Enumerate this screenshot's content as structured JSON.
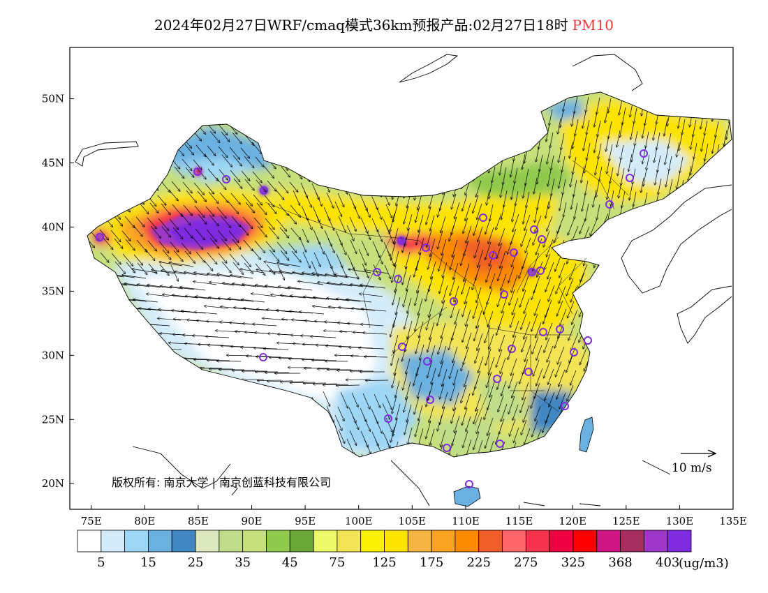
{
  "title": {
    "main": "2024年02月27日WRF/cmaq模式36km预报产品:02月27日18时",
    "pollutant": "PM10"
  },
  "map": {
    "lat_labels": [
      "50N",
      "45N",
      "40N",
      "35N",
      "30N",
      "25N",
      "20N"
    ],
    "lat_values": [
      50,
      45,
      40,
      35,
      30,
      25,
      20
    ],
    "lon_labels": [
      "75E",
      "80E",
      "85E",
      "90E",
      "95E",
      "100E",
      "105E",
      "110E",
      "115E",
      "120E",
      "125E",
      "130E",
      "135E"
    ],
    "lon_values": [
      75,
      80,
      85,
      90,
      95,
      100,
      105,
      110,
      115,
      120,
      125,
      130,
      135
    ],
    "extent": {
      "lon_min": 73,
      "lon_max": 135,
      "lat_min": 18,
      "lat_max": 54
    },
    "copyright": "版权所有: 南京大学 | 南京创蓝科技有限公司",
    "wind_scale_label": "10 m/s"
  },
  "colorbar": {
    "colors": [
      "#ffffff",
      "#d4ecfa",
      "#9ed6f5",
      "#6ab0e0",
      "#3f86c2",
      "#dce9be",
      "#bfdd8b",
      "#c7e07c",
      "#8fca4e",
      "#6aa937",
      "#eef96a",
      "#f3e455",
      "#fbf200",
      "#fde300",
      "#f5b441",
      "#fba424",
      "#fc8b02",
      "#ef5e28",
      "#fd6668",
      "#f6334d",
      "#ef0142",
      "#fe0000",
      "#cf1584",
      "#a62e5f",
      "#9d37c7",
      "#7f2be0"
    ],
    "labels": [
      "5",
      "15",
      "25",
      "35",
      "45",
      "75",
      "125",
      "175",
      "225",
      "275",
      "325",
      "368",
      "403"
    ],
    "unit": "(ug/m3)"
  }
}
